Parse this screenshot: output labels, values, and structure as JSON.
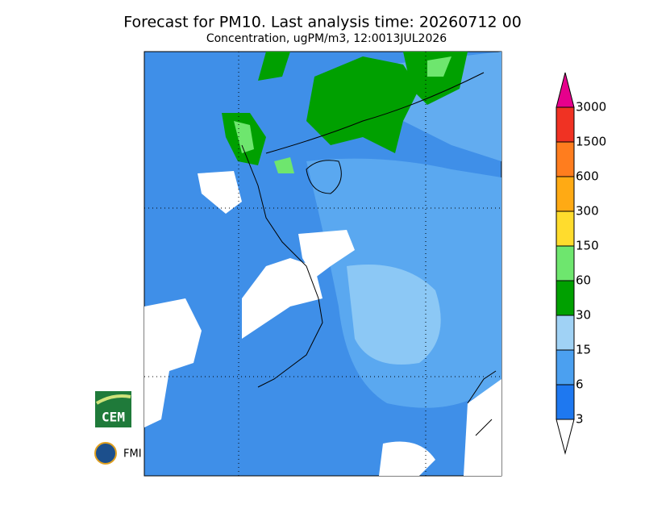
{
  "header": {
    "title": "Forecast for PM10. Last analysis time: 20260712 00",
    "subtitle": "Concentration, ugPM/m3, 12:0013JUL2026"
  },
  "legend": {
    "levels": [
      3,
      6,
      15,
      30,
      60,
      150,
      300,
      600,
      1500,
      3000
    ],
    "colors": [
      "#ffffff",
      "#1e78f0",
      "#4ba0f0",
      "#a0d2f5",
      "#00a000",
      "#6ee66e",
      "#ffdc2d",
      "#ffaa14",
      "#ff7d1e",
      "#f03223",
      "#e6008c"
    ]
  },
  "logos": {
    "cem": "CEM",
    "fmi": "FMI"
  }
}
